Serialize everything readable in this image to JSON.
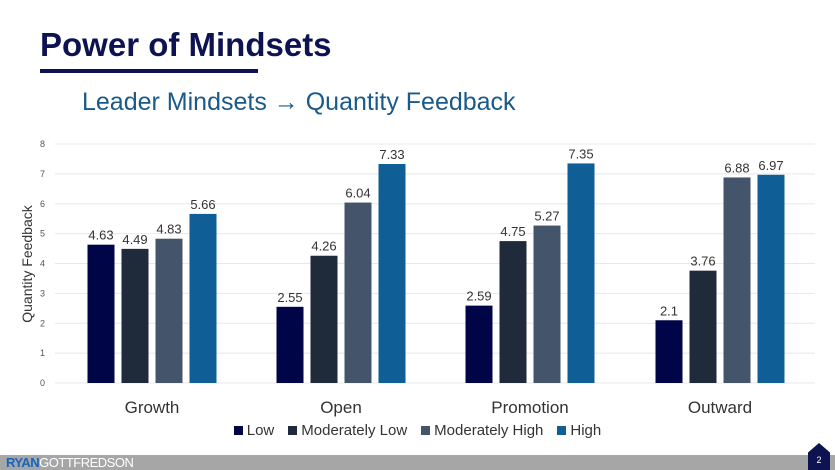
{
  "slide": {
    "title": "Power of Mindsets",
    "subtitle": "Leader Mindsets → Quantity Feedback",
    "brand_part1": "RYAN",
    "brand_part2": "GOTTFREDSON",
    "page_number": "2"
  },
  "chart_data": {
    "type": "bar",
    "title": "Leader Mindsets → Quantity Feedback",
    "xlabel": "",
    "ylabel": "Quantity Feedback",
    "ylim": [
      0,
      8
    ],
    "yticks": [
      "0",
      "1",
      "2",
      "3",
      "4",
      "5",
      "6",
      "7",
      "8"
    ],
    "grid": true,
    "legend_position": "bottom",
    "categories": [
      "Growth",
      "Open",
      "Promotion",
      "Outward"
    ],
    "series": [
      {
        "name": "Low",
        "color": "#000547",
        "values": [
          4.63,
          2.55,
          2.59,
          2.1
        ]
      },
      {
        "name": "Moderately Low",
        "color": "#1f2a3a",
        "values": [
          4.49,
          4.26,
          4.75,
          3.76
        ]
      },
      {
        "name": "Moderately High",
        "color": "#44546a",
        "values": [
          4.83,
          6.04,
          5.27,
          6.88
        ]
      },
      {
        "name": "High",
        "color": "#0f5f96",
        "values": [
          5.66,
          7.33,
          7.35,
          6.97
        ]
      }
    ]
  }
}
